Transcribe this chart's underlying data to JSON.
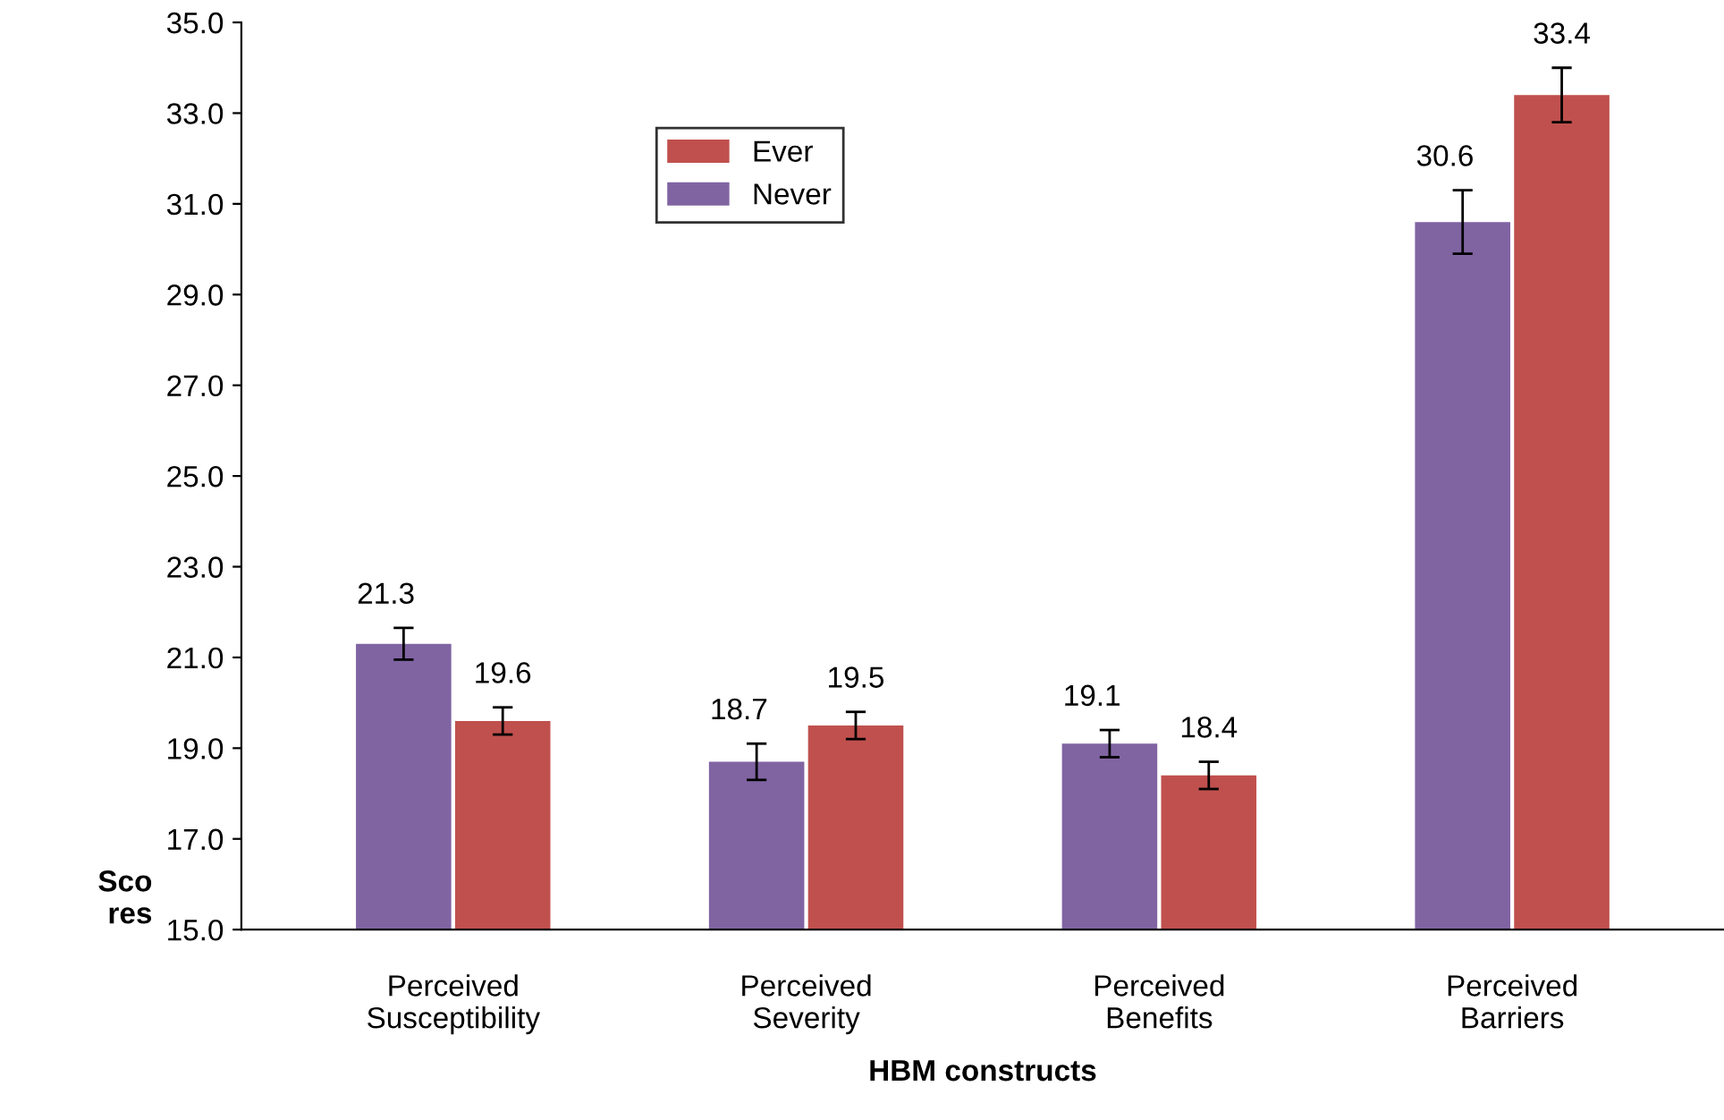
{
  "chart_data": {
    "type": "bar",
    "xlabel": "HBM constructs",
    "ylabel": "Sco\nres",
    "categories": [
      "Perceived\nSusceptibility",
      "Perceived\nSeverity",
      "Perceived\nBenefits",
      "Perceived\nBarriers"
    ],
    "series": [
      {
        "name": "Never",
        "color": "#8064a2",
        "values": [
          21.3,
          18.7,
          19.1,
          30.6
        ],
        "errors": [
          0.35,
          0.4,
          0.3,
          0.7
        ]
      },
      {
        "name": "Ever",
        "color": "#c0504d",
        "values": [
          19.6,
          19.5,
          18.4,
          33.4
        ],
        "errors": [
          0.3,
          0.3,
          0.3,
          0.6
        ]
      }
    ],
    "ylim": [
      15,
      35
    ],
    "yticks": [
      {
        "value": 15,
        "label": "15.0"
      },
      {
        "value": 17,
        "label": "17.0"
      },
      {
        "value": 19,
        "label": "19.0"
      },
      {
        "value": 21,
        "label": "21.0"
      },
      {
        "value": 23,
        "label": "23.0"
      },
      {
        "value": 25,
        "label": "25.0"
      },
      {
        "value": 27,
        "label": "27.0"
      },
      {
        "value": 29,
        "label": "29.0"
      },
      {
        "value": 31,
        "label": "31.0"
      },
      {
        "value": 33,
        "label": "33.0"
      },
      {
        "value": 35,
        "label": "35.0"
      }
    ],
    "data_labels": true,
    "grid": false,
    "legend": "top left"
  }
}
